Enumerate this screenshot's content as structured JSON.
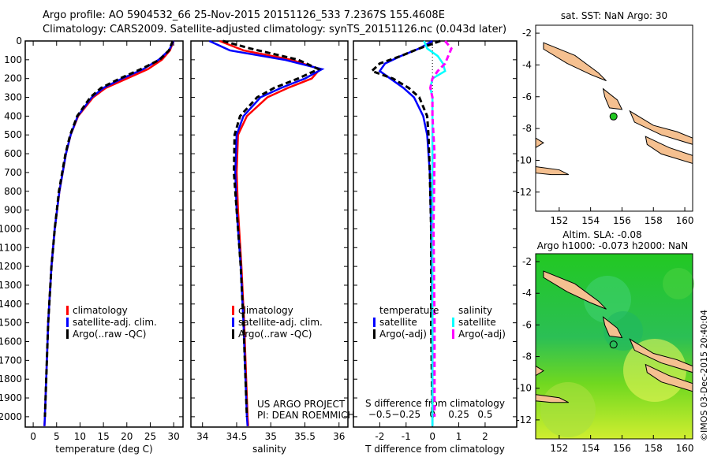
{
  "header": {
    "line1": "Argo profile: AO 5904532_66 25-Nov-2015 20151126_533 7.2367S 155.4608E",
    "line2": "Climatology: CARS2009. Satellite-adjusted climatology: synTS_20151126.nc (0.043d later)"
  },
  "credit": "©IMOS 03-Dec-2015 20:40:04",
  "colors": {
    "climatology": "#ff0000",
    "satellite": "#0000ff",
    "argo": "#000000",
    "sal_satellite": "#00ffff",
    "sal_argo": "#ff00ff",
    "land": "#f5c090",
    "ocean_map": "#ffffff"
  },
  "chart_data": [
    {
      "type": "line",
      "name": "temperature",
      "xlabel": "temperature (deg C)",
      "xlim": [
        -1.7,
        32
      ],
      "ylim": [
        2055,
        0
      ],
      "xticks": [
        0,
        5,
        10,
        15,
        20,
        25,
        30
      ],
      "yticks": [
        0,
        100,
        200,
        300,
        400,
        500,
        600,
        700,
        800,
        900,
        1000,
        1100,
        1200,
        1300,
        1400,
        1500,
        1600,
        1700,
        1800,
        1900,
        2000
      ],
      "legend": [
        "climatology",
        "satellite-adj. clim.",
        "Argo(..raw -QC)"
      ],
      "series": [
        {
          "name": "climatology",
          "color": "#ff0000",
          "depth": [
            0,
            50,
            100,
            150,
            200,
            250,
            300,
            400,
            500,
            600,
            800,
            1000,
            1200,
            1500,
            2000,
            2050
          ],
          "values": [
            30,
            29.2,
            27.5,
            24.5,
            20,
            15.5,
            12.8,
            9.6,
            8.0,
            7.0,
            5.6,
            4.6,
            3.9,
            3.2,
            2.5,
            2.4
          ]
        },
        {
          "name": "satellite-adj. clim.",
          "color": "#0000ff",
          "depth": [
            0,
            50,
            100,
            150,
            200,
            250,
            300,
            400,
            500,
            600,
            800,
            1000,
            1200,
            1500,
            2000,
            2050
          ],
          "values": [
            30,
            29,
            26.8,
            23.5,
            19,
            15,
            12.5,
            9.5,
            8.0,
            7.0,
            5.6,
            4.6,
            3.9,
            3.2,
            2.5,
            2.4
          ]
        },
        {
          "name": "Argo(..raw -QC)",
          "color": "#000000",
          "dashed": true,
          "depth": [
            0,
            50,
            100,
            150,
            200,
            250,
            300,
            400,
            500,
            600,
            800,
            1000,
            1200,
            1500,
            2000
          ],
          "values": [
            29.8,
            29,
            27,
            23,
            18.5,
            14.5,
            12.2,
            9.4,
            7.9,
            6.9,
            5.5,
            4.6,
            3.9,
            3.2,
            2.5
          ]
        }
      ]
    },
    {
      "type": "line",
      "name": "salinity",
      "xlabel": "salinity",
      "xlim": [
        33.83,
        36.13
      ],
      "ylim": [
        2055,
        0
      ],
      "xticks": [
        34,
        34.5,
        35,
        35.5,
        36
      ],
      "legend": [
        "climatology",
        "satellite-adj. clim.",
        "Argo(..raw -QC)"
      ],
      "annotation": [
        "US ARGO PROJECT",
        "PI: DEAN ROEMMICH"
      ],
      "series": [
        {
          "name": "climatology",
          "color": "#ff0000",
          "depth": [
            0,
            50,
            100,
            150,
            200,
            250,
            300,
            400,
            500,
            700,
            900,
            1200,
            1500,
            2000,
            2050
          ],
          "values": [
            34.25,
            34.6,
            35.3,
            35.72,
            35.6,
            35.25,
            34.95,
            34.65,
            34.52,
            34.5,
            34.52,
            34.57,
            34.61,
            34.66,
            34.67
          ]
        },
        {
          "name": "satellite-adj. clim.",
          "color": "#0000ff",
          "depth": [
            0,
            50,
            100,
            150,
            200,
            250,
            300,
            400,
            500,
            700,
            900,
            1200,
            1500,
            2000,
            2050
          ],
          "values": [
            34.1,
            34.4,
            35.2,
            35.75,
            35.5,
            35.15,
            34.85,
            34.6,
            34.5,
            34.48,
            34.5,
            34.56,
            34.6,
            34.65,
            34.66
          ]
        },
        {
          "name": "Argo(..raw -QC)",
          "color": "#000000",
          "dashed": true,
          "depth": [
            0,
            40,
            100,
            150,
            200,
            250,
            300,
            400,
            500,
            700,
            900,
            1200,
            1500,
            2000
          ],
          "values": [
            34.3,
            34.7,
            35.4,
            35.7,
            35.4,
            35.05,
            34.8,
            34.55,
            34.47,
            34.46,
            34.5,
            34.56,
            34.6,
            34.65
          ]
        }
      ]
    },
    {
      "type": "line",
      "name": "difference",
      "xlabel": "T difference from climatology",
      "x2label": "S difference from climatology",
      "xlim": [
        -3,
        3.2
      ],
      "ylim": [
        2055,
        0
      ],
      "xticks": [
        -2,
        -1,
        0,
        1,
        2
      ],
      "x2ticks": [
        "-0.5",
        "-0.25",
        "0",
        "0.25",
        "0.5"
      ],
      "legend_t": {
        "title": "temperature",
        "items": [
          "satellite",
          "Argo(-adj)"
        ]
      },
      "legend_s": {
        "title": "salinity",
        "items": [
          "satellite",
          "Argo(-adj)"
        ]
      },
      "series": [
        {
          "name": "T satellite",
          "color": "#0000ff",
          "depth": [
            0,
            40,
            80,
            120,
            160,
            200,
            250,
            300,
            400,
            500,
            700,
            1000,
            1500,
            2050
          ],
          "values": [
            0,
            -0.5,
            -1.2,
            -1.8,
            -2.0,
            -1.6,
            -1.1,
            -0.7,
            -0.35,
            -0.2,
            -0.1,
            -0.05,
            0,
            0
          ]
        },
        {
          "name": "T Argo(-adj)",
          "color": "#000000",
          "dashed": true,
          "depth": [
            0,
            40,
            80,
            120,
            160,
            200,
            250,
            300,
            400,
            500,
            700,
            1000,
            1500,
            2000
          ],
          "values": [
            0.3,
            -0.5,
            -1.2,
            -2.0,
            -2.3,
            -1.5,
            -0.9,
            -0.5,
            -0.2,
            -0.15,
            -0.1,
            -0.05,
            -0.05,
            0
          ]
        },
        {
          "name": "S satellite",
          "color": "#00ffff",
          "s_units": true,
          "depth": [
            0,
            40,
            80,
            120,
            160,
            200,
            250,
            300,
            400,
            600,
            1000,
            2050
          ],
          "values": [
            -0.08,
            -0.05,
            0.05,
            0.1,
            0.12,
            0.0,
            -0.02,
            0,
            0,
            0,
            0,
            0
          ]
        },
        {
          "name": "S Argo(-adj)",
          "color": "#ff00ff",
          "s_units": true,
          "dashed": true,
          "depth": [
            0,
            40,
            80,
            120,
            160,
            200,
            250,
            300,
            400,
            600,
            1000,
            1500,
            2000
          ],
          "values": [
            0.12,
            0.18,
            0.15,
            0.12,
            0.05,
            0.0,
            -0.02,
            0.0,
            0.0,
            0.02,
            0.01,
            0.02,
            0.02
          ]
        }
      ]
    }
  ],
  "maps": [
    {
      "title": "sat. SST: NaN Argo: 30",
      "yticks": [
        "-2",
        "-4",
        "-6",
        "-8",
        "-10",
        "-12"
      ],
      "xticks": [
        "152",
        "154",
        "156",
        "158",
        "160"
      ]
    },
    {
      "title1": "Altim. SLA: -0.08",
      "title2": "Argo h1000: -0.073 h2000: NaN",
      "yticks": [
        "-2",
        "-4",
        "-6",
        "-8",
        "-10",
        "-12"
      ],
      "xticks": [
        "152",
        "154",
        "156",
        "158",
        "160"
      ]
    }
  ]
}
